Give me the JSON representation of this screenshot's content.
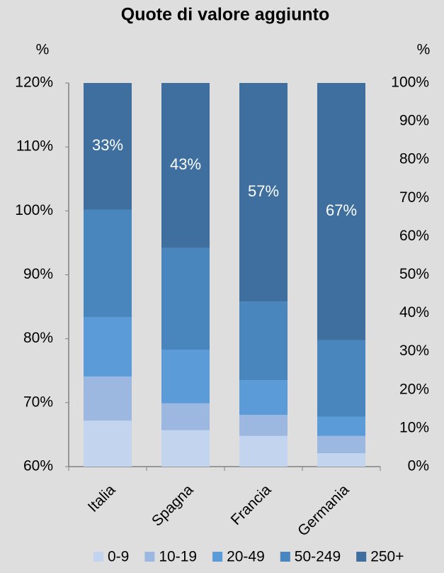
{
  "chart_data": {
    "type": "stacked_bar",
    "title": "Quote di valore aggiunto",
    "y_label": "%",
    "y2_label": "%",
    "categories": [
      "Italia",
      "Spagna",
      "Francia",
      "Germania"
    ],
    "ylim": [
      60,
      120
    ],
    "yticks": [
      {
        "value": 60,
        "label": "60%"
      },
      {
        "value": 70,
        "label": "70%"
      },
      {
        "value": 80,
        "label": "80%"
      },
      {
        "value": 90,
        "label": "90%"
      },
      {
        "value": 100,
        "label": "100%"
      },
      {
        "value": 110,
        "label": "110%"
      },
      {
        "value": 120,
        "label": "120%"
      }
    ],
    "y2lim": [
      0,
      100
    ],
    "y2ticks": [
      {
        "value": 0,
        "label": "0%"
      },
      {
        "value": 10,
        "label": "10%"
      },
      {
        "value": 20,
        "label": "20%"
      },
      {
        "value": 30,
        "label": "30%"
      },
      {
        "value": 40,
        "label": "40%"
      },
      {
        "value": 50,
        "label": "50%"
      },
      {
        "value": 60,
        "label": "60%"
      },
      {
        "value": 70,
        "label": "70%"
      },
      {
        "value": 80,
        "label": "80%"
      },
      {
        "value": 90,
        "label": "90%"
      },
      {
        "value": 100,
        "label": "100%"
      }
    ],
    "series": [
      {
        "name": "0-9",
        "color": "#c3d5ee",
        "axis": "y2",
        "values": [
          12,
          9.5,
          8,
          3.5
        ]
      },
      {
        "name": "10-19",
        "color": "#9cb8e0",
        "axis": "y2",
        "values": [
          11.5,
          7,
          5.5,
          4.5
        ]
      },
      {
        "name": "20-49",
        "color": "#5a9bd8",
        "axis": "y2",
        "values": [
          15.5,
          14,
          9,
          5
        ]
      },
      {
        "name": "50-249",
        "color": "#4986be",
        "axis": "y2",
        "values": [
          28,
          26.5,
          20.5,
          20
        ]
      },
      {
        "name": "250+",
        "color": "#3e6f9f",
        "axis": "y2",
        "values": [
          33,
          43,
          57,
          67
        ],
        "value_labels": [
          "33%",
          "43%",
          "57%",
          "67%"
        ]
      }
    ]
  }
}
